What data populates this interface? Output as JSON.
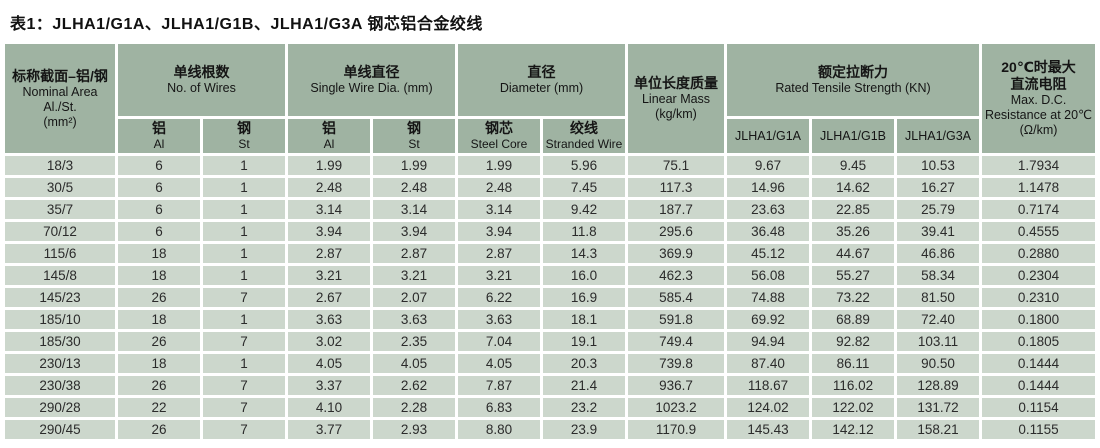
{
  "title": "表1：JLHA1/G1A、JLHA1/G1B、JLHA1/G3A 钢芯铝合金绞线",
  "colors": {
    "header_bg": "#9fb3a2",
    "cell_bg": "#ccd7cc",
    "gap": "#ffffff",
    "text": "#2b2b2b"
  },
  "table": {
    "headers": {
      "nominal_area": {
        "zh": "标称截面–铝/钢",
        "en1": "Nominal Area",
        "en2": "Al./St.",
        "unit": "(mm²)"
      },
      "no_of_wires": {
        "zh": "单线根数",
        "en": "No. of Wires"
      },
      "single_wire_dia": {
        "zh": "单线直径",
        "en": "Single Wire Dia. (mm)"
      },
      "diameter": {
        "zh": "直径",
        "en": "Diameter (mm)"
      },
      "linear_mass": {
        "zh": "单位长度质量",
        "en": "Linear Mass",
        "unit": "(kg/km)"
      },
      "tensile": {
        "zh": "额定拉断力",
        "en": "Rated Tensile Strength (KN)"
      },
      "resistance": {
        "zh1": "20℃时最大",
        "zh2": "直流电阻",
        "en1": "Max. D.C.",
        "en2": "Resistance at 20℃",
        "unit": "(Ω/km)"
      },
      "sub": {
        "al": {
          "zh": "铝",
          "en": "Al"
        },
        "st": {
          "zh": "钢",
          "en": "St"
        },
        "steel_core": {
          "zh": "钢芯",
          "en": "Steel Core"
        },
        "stranded_wire": {
          "zh": "绞线",
          "en": "Stranded Wire"
        },
        "g1a": "JLHA1/G1A",
        "g1b": "JLHA1/G1B",
        "g3a": "JLHA1/G3A"
      }
    },
    "rows": [
      [
        "18/3",
        "6",
        "1",
        "1.99",
        "1.99",
        "1.99",
        "5.96",
        "75.1",
        "9.67",
        "9.45",
        "10.53",
        "1.7934"
      ],
      [
        "30/5",
        "6",
        "1",
        "2.48",
        "2.48",
        "2.48",
        "7.45",
        "117.3",
        "14.96",
        "14.62",
        "16.27",
        "1.1478"
      ],
      [
        "35/7",
        "6",
        "1",
        "3.14",
        "3.14",
        "3.14",
        "9.42",
        "187.7",
        "23.63",
        "22.85",
        "25.79",
        "0.7174"
      ],
      [
        "70/12",
        "6",
        "1",
        "3.94",
        "3.94",
        "3.94",
        "11.8",
        "295.6",
        "36.48",
        "35.26",
        "39.41",
        "0.4555"
      ],
      [
        "115/6",
        "18",
        "1",
        "2.87",
        "2.87",
        "2.87",
        "14.3",
        "369.9",
        "45.12",
        "44.67",
        "46.86",
        "0.2880"
      ],
      [
        "145/8",
        "18",
        "1",
        "3.21",
        "3.21",
        "3.21",
        "16.0",
        "462.3",
        "56.08",
        "55.27",
        "58.34",
        "0.2304"
      ],
      [
        "145/23",
        "26",
        "7",
        "2.67",
        "2.07",
        "6.22",
        "16.9",
        "585.4",
        "74.88",
        "73.22",
        "81.50",
        "0.2310"
      ],
      [
        "185/10",
        "18",
        "1",
        "3.63",
        "3.63",
        "3.63",
        "18.1",
        "591.8",
        "69.92",
        "68.89",
        "72.40",
        "0.1800"
      ],
      [
        "185/30",
        "26",
        "7",
        "3.02",
        "2.35",
        "7.04",
        "19.1",
        "749.4",
        "94.94",
        "92.82",
        "103.11",
        "0.1805"
      ],
      [
        "230/13",
        "18",
        "1",
        "4.05",
        "4.05",
        "4.05",
        "20.3",
        "739.8",
        "87.40",
        "86.11",
        "90.50",
        "0.1444"
      ],
      [
        "230/38",
        "26",
        "7",
        "3.37",
        "2.62",
        "7.87",
        "21.4",
        "936.7",
        "118.67",
        "116.02",
        "128.89",
        "0.1444"
      ],
      [
        "290/28",
        "22",
        "7",
        "4.10",
        "2.28",
        "6.83",
        "23.2",
        "1023.2",
        "124.02",
        "122.02",
        "131.72",
        "0.1154"
      ],
      [
        "290/45",
        "26",
        "7",
        "3.77",
        "2.93",
        "8.80",
        "23.9",
        "1170.9",
        "145.43",
        "142.12",
        "158.21",
        "0.1155"
      ]
    ]
  }
}
